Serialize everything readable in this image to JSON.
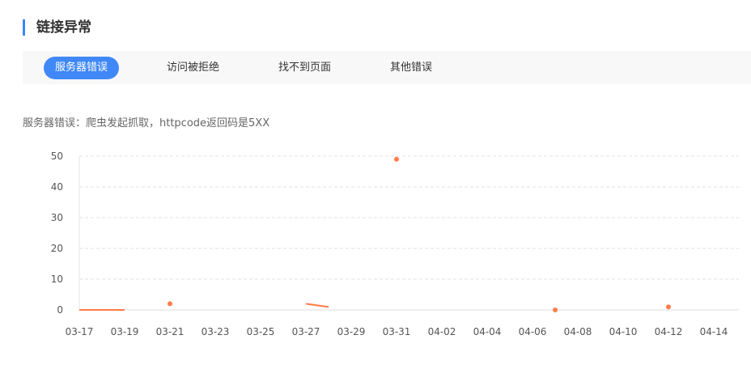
{
  "section_title": "链接异常",
  "tabs": [
    {
      "label": "服务器错误",
      "active": true
    },
    {
      "label": "访问被拒绝"
    },
    {
      "label": "找不到页面"
    },
    {
      "label": "其他错误"
    }
  ],
  "description": "服务器错误：爬虫发起抓取，httpcode返回码是5XX",
  "colors": {
    "accent": "#4088f8",
    "series": "#ff7c4a"
  },
  "chart_data": {
    "type": "line",
    "ylim": [
      0,
      50
    ],
    "yticks": [
      0,
      10,
      20,
      30,
      40,
      50
    ],
    "grid": "horizontal dashed",
    "x": [
      "03-17",
      "03-18",
      "03-19",
      "03-20",
      "03-21",
      "03-22",
      "03-23",
      "03-24",
      "03-25",
      "03-26",
      "03-27",
      "03-28",
      "03-29",
      "03-30",
      "03-31",
      "04-01",
      "04-02",
      "04-03",
      "04-04",
      "04-05",
      "04-06",
      "04-07",
      "04-08",
      "04-09",
      "04-10",
      "04-11",
      "04-12",
      "04-13",
      "04-14",
      "04-15"
    ],
    "xtick_labels": [
      "03-17",
      "03-19",
      "03-21",
      "03-23",
      "03-25",
      "03-27",
      "03-29",
      "03-31",
      "04-02",
      "04-04",
      "04-06",
      "04-08",
      "04-10",
      "04-12",
      "04-14"
    ],
    "series": [
      {
        "values": [
          0,
          0,
          0,
          null,
          2,
          null,
          null,
          null,
          null,
          null,
          2,
          1,
          null,
          null,
          49,
          null,
          null,
          null,
          null,
          null,
          null,
          0,
          null,
          null,
          null,
          null,
          1,
          null,
          null,
          null
        ]
      }
    ]
  }
}
